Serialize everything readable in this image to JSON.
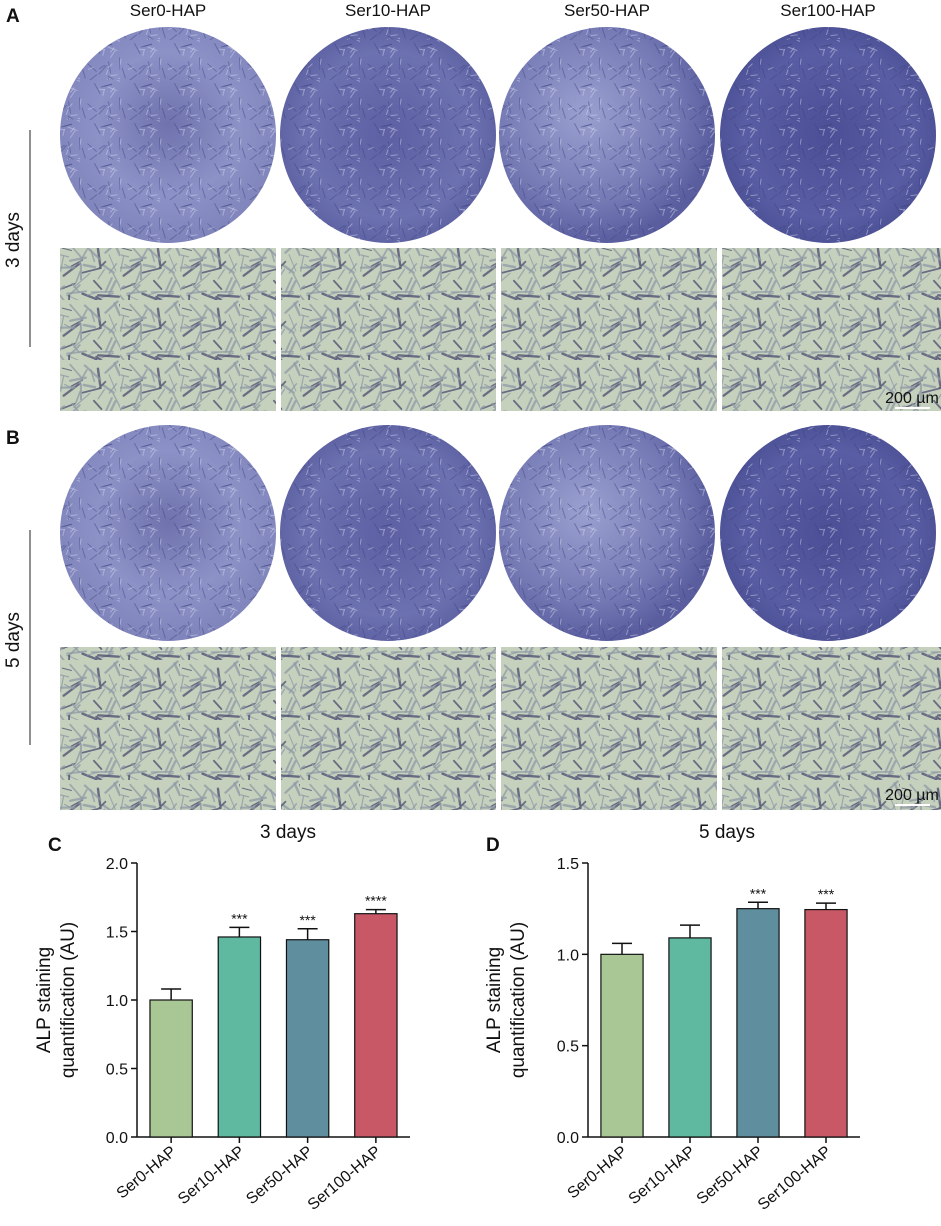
{
  "figure": {
    "panel_labels": [
      "A",
      "B",
      "C",
      "D"
    ],
    "columns": [
      "Ser0-HAP",
      "Ser10-HAP",
      "Ser50-HAP",
      "Ser100-HAP"
    ],
    "rows": [
      "3 days",
      "5 days"
    ],
    "scale_bar": "200 µm"
  },
  "chart_data": [
    {
      "type": "bar",
      "title": "3 days",
      "y_label": [
        "ALP staining",
        "quantification (AU)"
      ],
      "categories": [
        "Ser0-HAP",
        "Ser10-HAP",
        "Ser50-HAP",
        "Ser100-HAP"
      ],
      "values": [
        1.0,
        1.46,
        1.44,
        1.63
      ],
      "errors": [
        0.08,
        0.07,
        0.08,
        0.03
      ],
      "annotations": [
        "***",
        "***",
        "****"
      ],
      "colors": [
        "#a9c795",
        "#5fb8a0",
        "#5f8f9f",
        "#c85866"
      ],
      "ylim": [
        0,
        2
      ],
      "yticks": [
        {
          "value": 0,
          "label": "0.0"
        },
        0.5,
        {
          "value": 1,
          "label": "1.0"
        },
        1.5,
        {
          "value": 2,
          "label": "2.0"
        }
      ]
    },
    {
      "type": "bar",
      "title": "5 days",
      "y_label": [
        "ALP staining",
        "quantification (AU)"
      ],
      "categories": [
        "Ser0-HAP",
        "Ser10-HAP",
        "Ser50-HAP",
        "Ser100-HAP"
      ],
      "values": [
        1.0,
        1.09,
        1.25,
        1.245
      ],
      "errors": [
        0.06,
        0.07,
        0.035,
        0.035
      ],
      "annotations": [
        "***",
        "***"
      ],
      "colors": [
        "#a9c795",
        "#5fb8a0",
        "#5f8f9f",
        "#c85866"
      ],
      "ylim": [
        0,
        1.5
      ],
      "yticks": [
        {
          "value": 0,
          "label": "0.0"
        },
        0.5,
        {
          "value": 1,
          "label": "1.0"
        },
        {
          "value": 1.5,
          "label": "1.5"
        }
      ]
    }
  ]
}
